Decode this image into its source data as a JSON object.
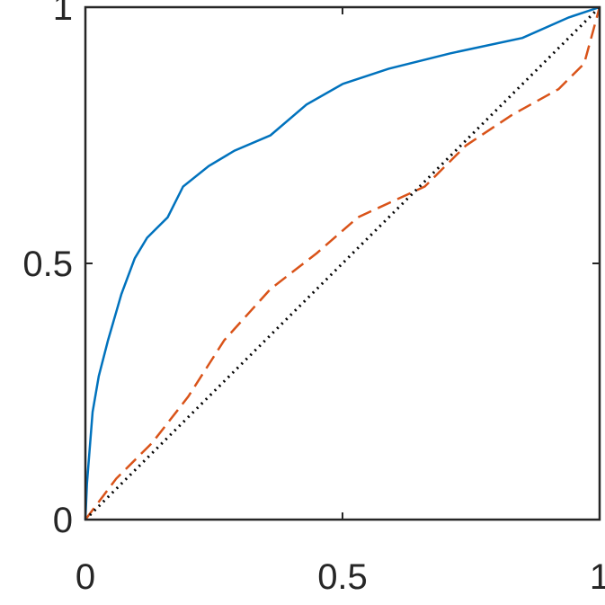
{
  "chart_data": {
    "type": "line",
    "xlim": [
      0,
      1
    ],
    "ylim": [
      0,
      1
    ],
    "xticks": [
      0,
      0.5,
      1
    ],
    "yticks": [
      0,
      0.5,
      1
    ],
    "series": [
      {
        "color": "#0072bd",
        "dash": "solid",
        "x": [
          0,
          0.003,
          0.014,
          0.026,
          0.044,
          0.07,
          0.096,
          0.12,
          0.16,
          0.19,
          0.24,
          0.29,
          0.36,
          0.43,
          0.5,
          0.59,
          0.71,
          0.85,
          0.94,
          1
        ],
        "values": [
          0,
          0.07,
          0.21,
          0.28,
          0.35,
          0.44,
          0.51,
          0.55,
          0.59,
          0.65,
          0.69,
          0.72,
          0.75,
          0.81,
          0.85,
          0.88,
          0.91,
          0.94,
          0.98,
          1
        ]
      },
      {
        "color": "#d95319",
        "dash": "dashed",
        "x": [
          0,
          0.06,
          0.13,
          0.2,
          0.27,
          0.36,
          0.45,
          0.53,
          0.66,
          0.74,
          0.83,
          0.92,
          0.97,
          1
        ],
        "values": [
          0,
          0.08,
          0.15,
          0.24,
          0.35,
          0.45,
          0.52,
          0.59,
          0.65,
          0.73,
          0.79,
          0.84,
          0.89,
          1
        ]
      },
      {
        "color": "#000000",
        "dash": "dotted",
        "x": [
          0,
          1
        ],
        "values": [
          0,
          1
        ]
      }
    ]
  }
}
